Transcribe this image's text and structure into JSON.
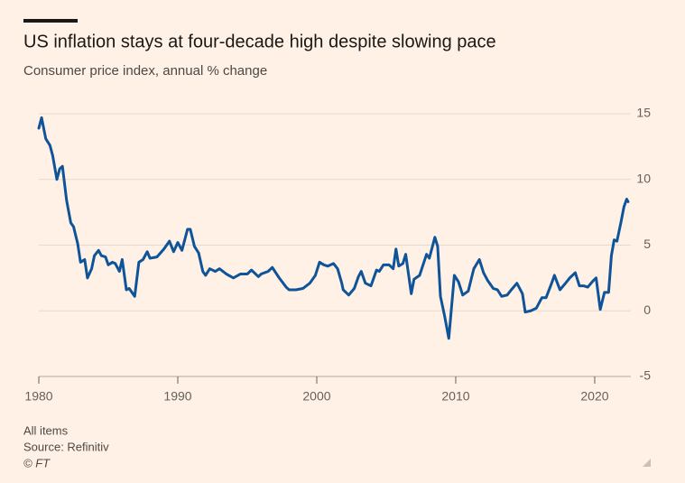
{
  "chart_data": {
    "type": "line",
    "title": "US inflation stays at four-decade high despite slowing pace",
    "subtitle": "Consumer price index, annual % change",
    "note": "All items",
    "source": "Source: Refinitiv",
    "credit": "© FT",
    "color": "#0f5499",
    "grid": true,
    "xlim": [
      1980,
      2022.6
    ],
    "xticks": [
      1980,
      1990,
      2000,
      2010,
      2020
    ],
    "ylim": [
      -5,
      15
    ],
    "yticks": [
      15,
      10,
      5,
      0,
      -5
    ],
    "x": [
      1980.0,
      1980.2,
      1980.5,
      1980.8,
      1981.0,
      1981.3,
      1981.5,
      1981.7,
      1982.0,
      1982.3,
      1982.5,
      1982.8,
      1983.0,
      1983.3,
      1983.5,
      1983.8,
      1984.0,
      1984.3,
      1984.5,
      1984.8,
      1985.0,
      1985.3,
      1985.5,
      1985.8,
      1986.0,
      1986.3,
      1986.5,
      1986.9,
      1987.2,
      1987.5,
      1987.8,
      1988.0,
      1988.5,
      1989.0,
      1989.4,
      1989.7,
      1990.0,
      1990.3,
      1990.7,
      1990.9,
      1991.2,
      1991.5,
      1991.8,
      1992.0,
      1992.3,
      1992.7,
      1993.0,
      1993.5,
      1994.0,
      1994.5,
      1995.0,
      1995.3,
      1995.8,
      1996.0,
      1996.5,
      1996.8,
      1997.3,
      1997.8,
      1998.0,
      1998.5,
      1999.0,
      1999.5,
      1999.9,
      2000.2,
      2000.5,
      2000.8,
      2001.2,
      2001.5,
      2001.8,
      2001.9,
      2002.3,
      2002.7,
      2003.0,
      2003.2,
      2003.5,
      2003.9,
      2004.3,
      2004.5,
      2004.8,
      2005.2,
      2005.5,
      2005.7,
      2005.9,
      2006.2,
      2006.4,
      2006.8,
      2007.0,
      2007.4,
      2007.9,
      2008.1,
      2008.5,
      2008.7,
      2008.9,
      2009.2,
      2009.5,
      2009.9,
      2010.2,
      2010.5,
      2010.9,
      2011.3,
      2011.7,
      2012.0,
      2012.3,
      2012.7,
      2013.0,
      2013.3,
      2013.7,
      2014.0,
      2014.4,
      2014.8,
      2015.0,
      2015.4,
      2015.8,
      2016.2,
      2016.5,
      2016.9,
      2017.1,
      2017.5,
      2017.9,
      2018.2,
      2018.6,
      2018.9,
      2019.2,
      2019.5,
      2019.9,
      2020.1,
      2020.4,
      2020.7,
      2021.0,
      2021.2,
      2021.4,
      2021.6,
      2021.9,
      2022.1,
      2022.3,
      2022.4
    ],
    "values": [
      13.9,
      14.7,
      13.1,
      12.6,
      11.8,
      10.0,
      10.8,
      11.0,
      8.4,
      6.7,
      6.4,
      5.1,
      3.7,
      3.9,
      2.5,
      3.2,
      4.2,
      4.6,
      4.2,
      4.1,
      3.5,
      3.7,
      3.6,
      3.0,
      3.9,
      1.6,
      1.7,
      1.1,
      3.7,
      3.9,
      4.5,
      4.0,
      4.1,
      4.7,
      5.3,
      4.5,
      5.2,
      4.6,
      6.2,
      6.2,
      4.9,
      4.4,
      3.0,
      2.7,
      3.2,
      3.0,
      3.2,
      2.8,
      2.5,
      2.8,
      2.8,
      3.1,
      2.6,
      2.8,
      3.0,
      3.3,
      2.5,
      1.8,
      1.6,
      1.6,
      1.7,
      2.1,
      2.7,
      3.7,
      3.5,
      3.4,
      3.6,
      3.2,
      2.1,
      1.6,
      1.2,
      1.7,
      2.6,
      3.0,
      2.1,
      1.9,
      3.1,
      3.0,
      3.5,
      3.5,
      3.2,
      4.7,
      3.4,
      3.6,
      4.3,
      1.3,
      2.4,
      2.7,
      4.3,
      4.0,
      5.6,
      4.9,
      1.1,
      -0.4,
      -2.1,
      2.7,
      2.2,
      1.2,
      1.5,
      3.2,
      3.9,
      2.9,
      2.3,
      1.7,
      1.6,
      1.1,
      1.2,
      1.6,
      2.1,
      1.3,
      -0.1,
      0.0,
      0.2,
      1.0,
      1.0,
      2.1,
      2.7,
      1.6,
      2.1,
      2.5,
      2.9,
      1.9,
      1.9,
      1.8,
      2.3,
      2.5,
      0.1,
      1.4,
      1.4,
      4.2,
      5.4,
      5.3,
      6.8,
      7.9,
      8.5,
      8.3
    ]
  }
}
